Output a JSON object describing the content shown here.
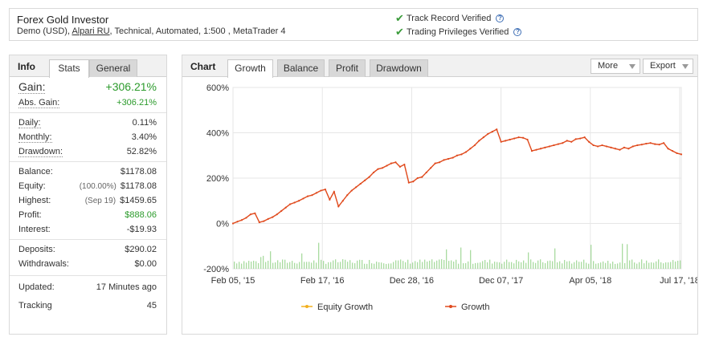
{
  "header": {
    "title": "Forex Gold Investor",
    "subtitle_pre": "Demo (USD),",
    "subtitle_link": "Alpari RU",
    "subtitle_post": ", Technical, Automated, 1:500 , MetaTrader 4",
    "verifications": [
      {
        "label": "Track Record Verified",
        "icon": "check-icon",
        "help": "?"
      },
      {
        "label": "Trading Privileges Verified",
        "icon": "check-icon",
        "help": "?"
      }
    ]
  },
  "info_panel": {
    "heading": "Info",
    "tabs": [
      {
        "label": "Stats",
        "active": true
      },
      {
        "label": "General",
        "active": false
      }
    ],
    "gain": {
      "label": "Gain:",
      "value": "+306.21%"
    },
    "abs_gain": {
      "label": "Abs. Gain:",
      "value": "+306.21%"
    },
    "daily": {
      "label": "Daily:",
      "value": "0.11%"
    },
    "monthly": {
      "label": "Monthly:",
      "value": "3.40%"
    },
    "drawdown": {
      "label": "Drawdown:",
      "value": "52.82%"
    },
    "balance": {
      "label": "Balance:",
      "value": "$1178.08"
    },
    "equity": {
      "label": "Equity:",
      "note": "(100.00%)",
      "value": "$1178.08"
    },
    "highest": {
      "label": "Highest:",
      "note": "(Sep 19)",
      "value": "$1459.65"
    },
    "profit": {
      "label": "Profit:",
      "value": "$888.06"
    },
    "interest": {
      "label": "Interest:",
      "value": "-$19.93"
    },
    "deposits": {
      "label": "Deposits:",
      "value": "$290.02"
    },
    "withdrawals": {
      "label": "Withdrawals:",
      "value": "$0.00"
    },
    "updated": {
      "label": "Updated:",
      "value": "17 Minutes ago"
    },
    "tracking": {
      "label": "Tracking",
      "value": "45"
    }
  },
  "chart_panel": {
    "heading": "Chart",
    "tabs": [
      {
        "label": "Growth",
        "active": true
      },
      {
        "label": "Balance",
        "active": false
      },
      {
        "label": "Profit",
        "active": false
      },
      {
        "label": "Drawdown",
        "active": false
      }
    ],
    "more_label": "More",
    "export_label": "Export"
  },
  "colors": {
    "growth": "#e04a1f",
    "equity_growth": "#f2b01e",
    "volume": "#a9dba0",
    "green_value": "#2c9b2c"
  },
  "chart_data": {
    "type": "line",
    "x_ticks": [
      "Feb 05, '15",
      "Feb 17, '16",
      "Dec 28, '16",
      "Dec 07, '17",
      "Apr 05, '18",
      "Jul 17, '18"
    ],
    "y_ticks": [
      "600%",
      "400%",
      "200%",
      "0%",
      "-200%"
    ],
    "ylim": [
      -200,
      600
    ],
    "grid": true,
    "legend_position": "bottom",
    "series": [
      {
        "name": "Growth",
        "values": [
          0,
          8,
          15,
          25,
          40,
          45,
          5,
          10,
          20,
          28,
          40,
          55,
          70,
          85,
          92,
          100,
          110,
          120,
          125,
          135,
          145,
          150,
          105,
          140,
          75,
          100,
          125,
          145,
          160,
          175,
          190,
          205,
          225,
          240,
          245,
          255,
          265,
          270,
          250,
          260,
          180,
          185,
          200,
          205,
          225,
          245,
          265,
          270,
          280,
          285,
          290,
          300,
          305,
          315,
          330,
          345,
          365,
          380,
          395,
          405,
          415,
          360,
          365,
          370,
          375,
          380,
          378,
          370,
          320,
          325,
          330,
          335,
          340,
          345,
          350,
          355,
          365,
          360,
          372,
          375,
          380,
          360,
          345,
          340,
          345,
          340,
          335,
          330,
          325,
          335,
          330,
          340,
          345,
          348,
          352,
          355,
          350,
          348,
          355,
          330,
          320,
          310,
          305
        ]
      },
      {
        "name": "Equity Growth",
        "values": [
          0,
          8,
          15,
          25,
          40,
          45,
          5,
          10,
          20,
          28,
          40,
          55,
          70,
          85,
          92,
          100,
          110,
          120,
          125,
          135,
          145,
          150,
          105,
          140,
          75,
          100,
          125,
          145,
          160,
          175,
          190,
          205,
          225,
          240,
          245,
          255,
          265,
          270,
          250,
          260,
          180,
          185,
          200,
          205,
          225,
          245,
          265,
          270,
          280,
          285,
          290,
          300,
          305,
          315,
          330,
          345,
          365,
          380,
          395,
          405,
          415,
          360,
          365,
          370,
          375,
          380,
          378,
          370,
          320,
          325,
          330,
          335,
          340,
          345,
          350,
          355,
          365,
          360,
          372,
          375,
          380,
          360,
          345,
          340,
          345,
          340,
          335,
          330,
          325,
          335,
          330,
          340,
          345,
          348,
          352,
          355,
          350,
          348,
          355,
          330,
          320,
          310,
          305
        ]
      }
    ]
  }
}
